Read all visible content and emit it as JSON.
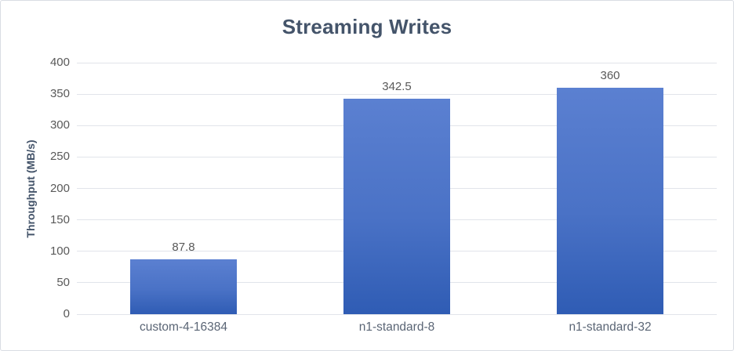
{
  "chart_data": {
    "type": "bar",
    "title": "Streaming Writes",
    "xlabel": "",
    "ylabel": "Throughput (MB/s)",
    "categories": [
      "custom-4-16384",
      "n1-standard-8",
      "n1-standard-32"
    ],
    "values": [
      87.8,
      342.5,
      360
    ],
    "value_labels": [
      "87.8",
      "342.5",
      "360"
    ],
    "ylim": [
      0,
      400
    ],
    "yticks": [
      0,
      50,
      100,
      150,
      200,
      250,
      300,
      350,
      400
    ],
    "grid": "horizontal-only",
    "legend_position": "none",
    "colors": {
      "bar_gradient_top": "#5b80d1",
      "bar_gradient_mid": "#4a72c6",
      "bar_gradient_bottom": "#2f5cb4",
      "title_text": "#44546a",
      "y_axis_title_text": "#44546a",
      "tick_label_text": "#595959",
      "data_label_text": "#595959",
      "category_label_text": "#5a6575",
      "gridline": "#e1e4ea",
      "chart_border": "#d9dde3",
      "background": "#ffffff"
    }
  }
}
